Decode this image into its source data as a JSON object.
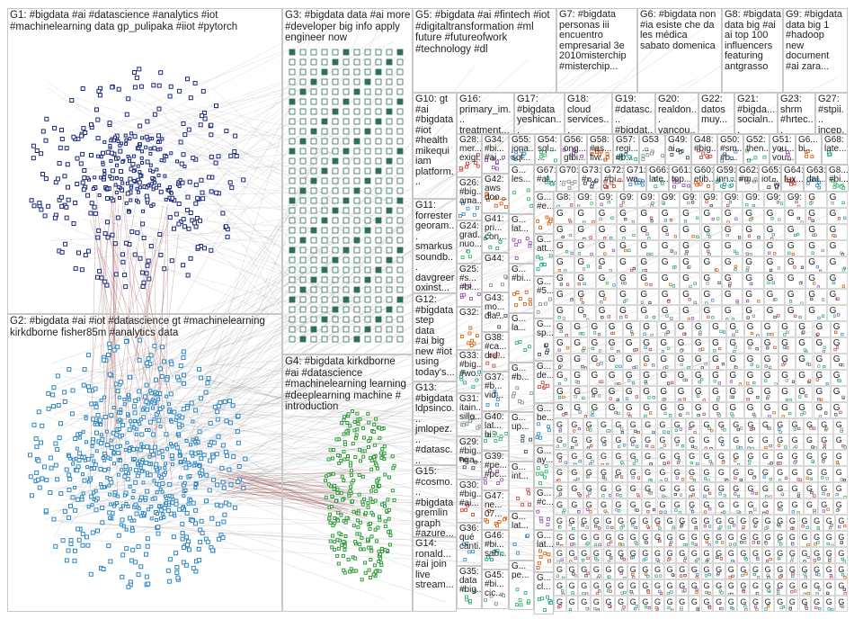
{
  "graph": {
    "groups": [
      {
        "id": "G1",
        "label": "G1: #bigdata #ai #datascience #analytics #iot\n#machinelearning data gp_pulipaka #iiot #pytorch",
        "color": "#1b2a7a"
      },
      {
        "id": "G2",
        "label": "G2: #bigdata #ai #iot #datascience gt #machinelearning\nkirkdborne fisher85m #analytics data",
        "color": "#2e86c1"
      },
      {
        "id": "G3",
        "label": "G3: #bigdata data #ai more\n#developer big info apply\nengineer now",
        "color": "#2f6f5a"
      },
      {
        "id": "G4",
        "label": "G4: #bigdata kirkdborne\n#ai #datascience\n#machinelearning learning\n#deeplearning machine #\nintroduction",
        "color": "#2f9a3a"
      },
      {
        "id": "G5",
        "label": "G5: #bigdata #ai #fintech #iot\n#digitaltransformation #ml\nfuture #futureofwork\n#technology #dl",
        "color": "#8a5a2b"
      },
      {
        "id": "G7",
        "label": "G7: #bigdata\npersonas iii\nencuentro\nempresarial 3e\n2010misterchip\n#misterchip...",
        "color": "#7a3a7a"
      },
      {
        "id": "G6",
        "label": "G6: #bigdata non\n#ia esiste che da\nles médica\nsabato domenica",
        "color": "#a04040"
      },
      {
        "id": "G8",
        "label": "G8: #bigdata\ndata big #ai\nai top 100\ninfluencers\nfeaturing\nantgrasso",
        "color": "#5a5aa0"
      },
      {
        "id": "G9",
        "label": "G9: #bigdata\ndata big 1\n#hadoop\nnew\ndocument\n#ai zara...",
        "color": "#3a7aa0"
      },
      {
        "id": "G10",
        "label": "G10: gt\n#ai\n#bigdata\n#iot\n#health\nmikequi\niam\nplatform...",
        "color": "#556b2f"
      },
      {
        "id": "G16",
        "label": "G16:\nprimary_im...\ntreatment...",
        "color": "#777777"
      },
      {
        "id": "G17",
        "label": "G17:\n#bigdata\nyeshican...",
        "color": "#777777"
      },
      {
        "id": "G18",
        "label": "G18:\ncloud\nservices...",
        "color": "#777777"
      },
      {
        "id": "G19",
        "label": "G19:\n#datasc...\n#bigdat...",
        "color": "#777777"
      },
      {
        "id": "G20",
        "label": "G20:\nrealdon...\nvancou...",
        "color": "#777777"
      },
      {
        "id": "G22",
        "label": "G22:\ndatos\nmuy...",
        "color": "#777777"
      },
      {
        "id": "G21",
        "label": "G21:\n#bigda...\nsocialn...",
        "color": "#777777"
      },
      {
        "id": "G23",
        "label": "G23:\nshrm\n#hrtec...",
        "color": "#777777"
      },
      {
        "id": "G27",
        "label": "G27:\n#stpii...\nincep...",
        "color": "#777777"
      },
      {
        "id": "G11",
        "label": "G11:\nforrester\ngeoram...\nsmarkus\nsoundb...\ndavgreer\noxinst...",
        "color": "#777777"
      },
      {
        "id": "G12",
        "label": "G12:\n#bigdata\nstep data\n#ai big\nnew #iot\nusing\ntoday's...",
        "color": "#777777"
      },
      {
        "id": "G13",
        "label": "G13:\n#bigdata\nldpsinco...\njmlopez...\n#datasc...\ndatos\nsincom...",
        "color": "#777777"
      },
      {
        "id": "G15",
        "label": "G15:\n#cosmo...\n#bigdata\ngremlin\ngraph\n#azure...",
        "color": "#777777"
      },
      {
        "id": "G14",
        "label": "G14:\nronald...\n#ai join\nlive\nstream...",
        "color": "#777777"
      }
    ],
    "small_groups_col1": [
      {
        "id": "G28",
        "label": "G28:\nmer...\nexigi..."
      },
      {
        "id": "G26",
        "label": "G26:\n#big...\nama..."
      },
      {
        "id": "G24",
        "label": "G24:\ngrad...\nnuo..."
      },
      {
        "id": "G25",
        "label": "G25:\n#s...\n#bi..."
      },
      {
        "id": "G32",
        "label": "G32:"
      },
      {
        "id": "G33",
        "label": "G33:\n#big...\n#wo..."
      },
      {
        "id": "G31",
        "label": "G31:\nitain...\nsillo..."
      },
      {
        "id": "G29",
        "label": "G29:\n#big...\nnga..."
      },
      {
        "id": "G30",
        "label": "G30:\n#big...\n#ai..."
      },
      {
        "id": "G36",
        "label": "G36:\nqué\ncanti..."
      },
      {
        "id": "G35",
        "label": "G35:\ndata\n#big..."
      }
    ],
    "small_groups_col2": [
      {
        "id": "G34",
        "label": "G34:\n#bi...\n#ai..."
      },
      {
        "id": "G42",
        "label": "G42:\naws\ndoo..."
      },
      {
        "id": "G41",
        "label": "G41:\npri...\ncon..."
      },
      {
        "id": "G44",
        "label": "G44:"
      },
      {
        "id": "G43",
        "label": "G43:\nmo...\ndia..."
      },
      {
        "id": "G38",
        "label": "G38:\n#ca...\ndrd..."
      },
      {
        "id": "G37",
        "label": "G37:\n#b...\nvid..."
      },
      {
        "id": "G40",
        "label": "G40:\nlat...\nbi..."
      },
      {
        "id": "G39",
        "label": "G39:\n#pe...\n#pc..."
      },
      {
        "id": "G47",
        "label": "G47:\nne...\n07..."
      },
      {
        "id": "G46",
        "label": "G46:\n#bi...\nsab..."
      },
      {
        "id": "G45",
        "label": "G45:\n#bi...\ncic..."
      }
    ],
    "small_groups_row1": [
      {
        "id": "G55",
        "label": "G55:\njona...\nsql..."
      },
      {
        "id": "G54",
        "label": "G54:\nsql...\n..."
      },
      {
        "id": "G56",
        "label": "G56:\nong...\ngfbi..."
      },
      {
        "id": "G58",
        "label": "G58:\n#as...\nfiw..."
      },
      {
        "id": "G57",
        "label": "G57:\nregi...\n#b..."
      },
      {
        "id": "G53",
        "label": "G53\n..."
      },
      {
        "id": "G49",
        "label": "G49:\nai..."
      },
      {
        "id": "G48",
        "label": "G48:\n#big..."
      },
      {
        "id": "G50",
        "label": "G50:\n#sm...\n#b..."
      },
      {
        "id": "G52",
        "label": "G52:\nthen...\n..."
      },
      {
        "id": "G51",
        "label": "G51:\nyou...\nvou..."
      },
      {
        "id": "G6x",
        "label": "G6...\nbi..."
      },
      {
        "id": "G68",
        "label": "G68:\nlate..."
      }
    ],
    "small_groups_row2": [
      {
        "id": "G67",
        "label": "G67:\n#al..."
      },
      {
        "id": "G70",
        "label": "G70:\n..."
      },
      {
        "id": "G73",
        "label": "G73:\n#..."
      },
      {
        "id": "G72",
        "label": "G72:\n#bi..."
      },
      {
        "id": "G71",
        "label": "G71:\nwa..."
      },
      {
        "id": "G66",
        "label": "G66:\nlate..."
      },
      {
        "id": "G61",
        "label": "G61:\ntop..."
      },
      {
        "id": "G60",
        "label": "G60:\netib..."
      },
      {
        "id": "G59",
        "label": "G59:\ninn..."
      },
      {
        "id": "G62",
        "label": "G62:\n#m..."
      },
      {
        "id": "G65",
        "label": "G65:\niot..."
      },
      {
        "id": "G64",
        "label": "G64:\nfux..."
      },
      {
        "id": "G63",
        "label": "G63:\ndat..."
      },
      {
        "id": "G8x",
        "label": "G8...\n#bi..."
      }
    ],
    "small_groups_col3": [
      {
        "id": "c3a",
        "label": "G...\nles..."
      },
      {
        "id": "c3b",
        "label": "G...\nlat..."
      },
      {
        "id": "c3c",
        "label": "G...\n#bi..."
      },
      {
        "id": "c3d",
        "label": "G...\nla..."
      },
      {
        "id": "c3e",
        "label": "G...\n#b..."
      },
      {
        "id": "c3f",
        "label": "G...\nup..."
      },
      {
        "id": "c3g",
        "label": "G...\nint..."
      },
      {
        "id": "c3h",
        "label": "G...\nlat..."
      },
      {
        "id": "c3i",
        "label": "G...\npe..."
      }
    ],
    "small_groups_col4": [
      {
        "id": "c4a",
        "label": "G...\n#e..."
      },
      {
        "id": "c4b",
        "label": "G...\natt..."
      },
      {
        "id": "c4c",
        "label": "G...\n#5..."
      },
      {
        "id": "c4d",
        "label": "G...\nsp..."
      },
      {
        "id": "c4e",
        "label": "G...\nde..."
      },
      {
        "id": "c4f",
        "label": "G...\nbe..."
      },
      {
        "id": "c4g",
        "label": "G...\nay..."
      },
      {
        "id": "c4h",
        "label": "G...\n#c..."
      },
      {
        "id": "c4i",
        "label": "G...\nlat..."
      },
      {
        "id": "c4j",
        "label": "G...\ncl..."
      }
    ],
    "small_grid_row_labels": [
      "G8:",
      "G9:",
      "G9:",
      "G9:",
      "G9:",
      "G9:",
      "G9:",
      "G9:",
      "G9:",
      "G9:",
      "G9:",
      "G9:"
    ]
  }
}
